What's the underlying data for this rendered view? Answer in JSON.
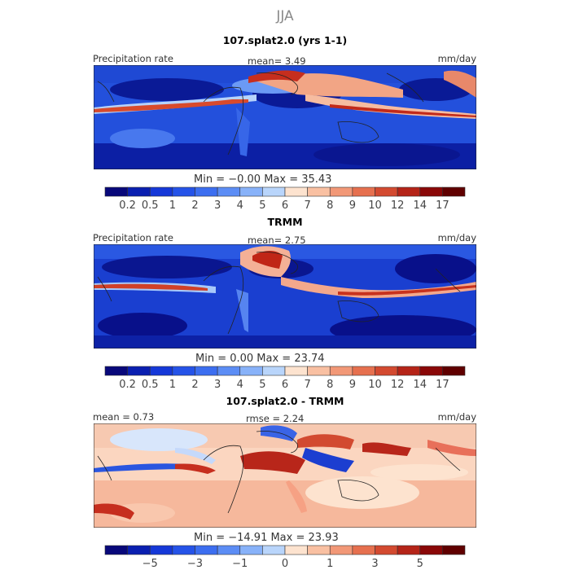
{
  "figure": {
    "season": "JJA",
    "panels": [
      {
        "title": "107.splat2.0 (yrs 1-1)",
        "left_label": "Precipitation rate",
        "center_label": "mean=    3.49",
        "right_label": "mm/day",
        "minmax": "Min  =   −0.00  Max  =   35.43"
      },
      {
        "title": "TRMM",
        "left_label": "Precipitation rate",
        "center_label": "mean=    2.75",
        "right_label": "mm/day",
        "minmax": "Min  =    0.00  Max  =  23.74"
      },
      {
        "title": "107.splat2.0 - TRMM",
        "left_label": "mean =    0.73",
        "center_label": "rmse =    2.24",
        "right_label": "mm/day",
        "minmax": "Min  =  −14.91  Max  =   23.93"
      }
    ]
  },
  "chart_data": [
    {
      "type": "heatmap",
      "title": "107.splat2.0 (yrs 1-1)",
      "variable": "Precipitation rate",
      "units": "mm/day",
      "mean": 3.49,
      "min": -0.0,
      "max": 35.43,
      "colorbar": {
        "levels": [
          "0.2",
          "0.5",
          "1",
          "2",
          "3",
          "4",
          "5",
          "6",
          "7",
          "8",
          "9",
          "10",
          "12",
          "14",
          "17"
        ],
        "colors": [
          "#08087a",
          "#0a1fb0",
          "#1538d8",
          "#2553e8",
          "#3c6ef0",
          "#5c8df5",
          "#88b2f9",
          "#b9d5fb",
          "#fde3cf",
          "#f9c0a2",
          "#f29877",
          "#e6704f",
          "#d34a30",
          "#b52418",
          "#8a0808",
          "#600000"
        ]
      }
    },
    {
      "type": "heatmap",
      "title": "TRMM",
      "variable": "Precipitation rate",
      "units": "mm/day",
      "mean": 2.75,
      "min": 0.0,
      "max": 23.74,
      "colorbar": {
        "levels": [
          "0.2",
          "0.5",
          "1",
          "2",
          "3",
          "4",
          "5",
          "6",
          "7",
          "8",
          "9",
          "10",
          "12",
          "14",
          "17"
        ],
        "colors": [
          "#08087a",
          "#0a1fb0",
          "#1538d8",
          "#2553e8",
          "#3c6ef0",
          "#5c8df5",
          "#88b2f9",
          "#b9d5fb",
          "#fde3cf",
          "#f9c0a2",
          "#f29877",
          "#e6704f",
          "#d34a30",
          "#b52418",
          "#8a0808",
          "#600000"
        ]
      }
    },
    {
      "type": "heatmap",
      "title": "107.splat2.0 - TRMM",
      "units": "mm/day",
      "mean": 0.73,
      "rmse": 2.24,
      "min": -14.91,
      "max": 23.93,
      "colorbar": {
        "levels": [
          "",
          "−5",
          "",
          "−3",
          "",
          "−1",
          "",
          "0",
          "",
          "1",
          "",
          "3",
          "",
          "5",
          ""
        ],
        "colors": [
          "#08087a",
          "#0a1fb0",
          "#1538d8",
          "#2553e8",
          "#3c6ef0",
          "#5c8df5",
          "#88b2f9",
          "#b9d5fb",
          "#fde3cf",
          "#f9c0a2",
          "#f29877",
          "#e6704f",
          "#d34a30",
          "#b52418",
          "#8a0808",
          "#600000"
        ]
      }
    }
  ]
}
